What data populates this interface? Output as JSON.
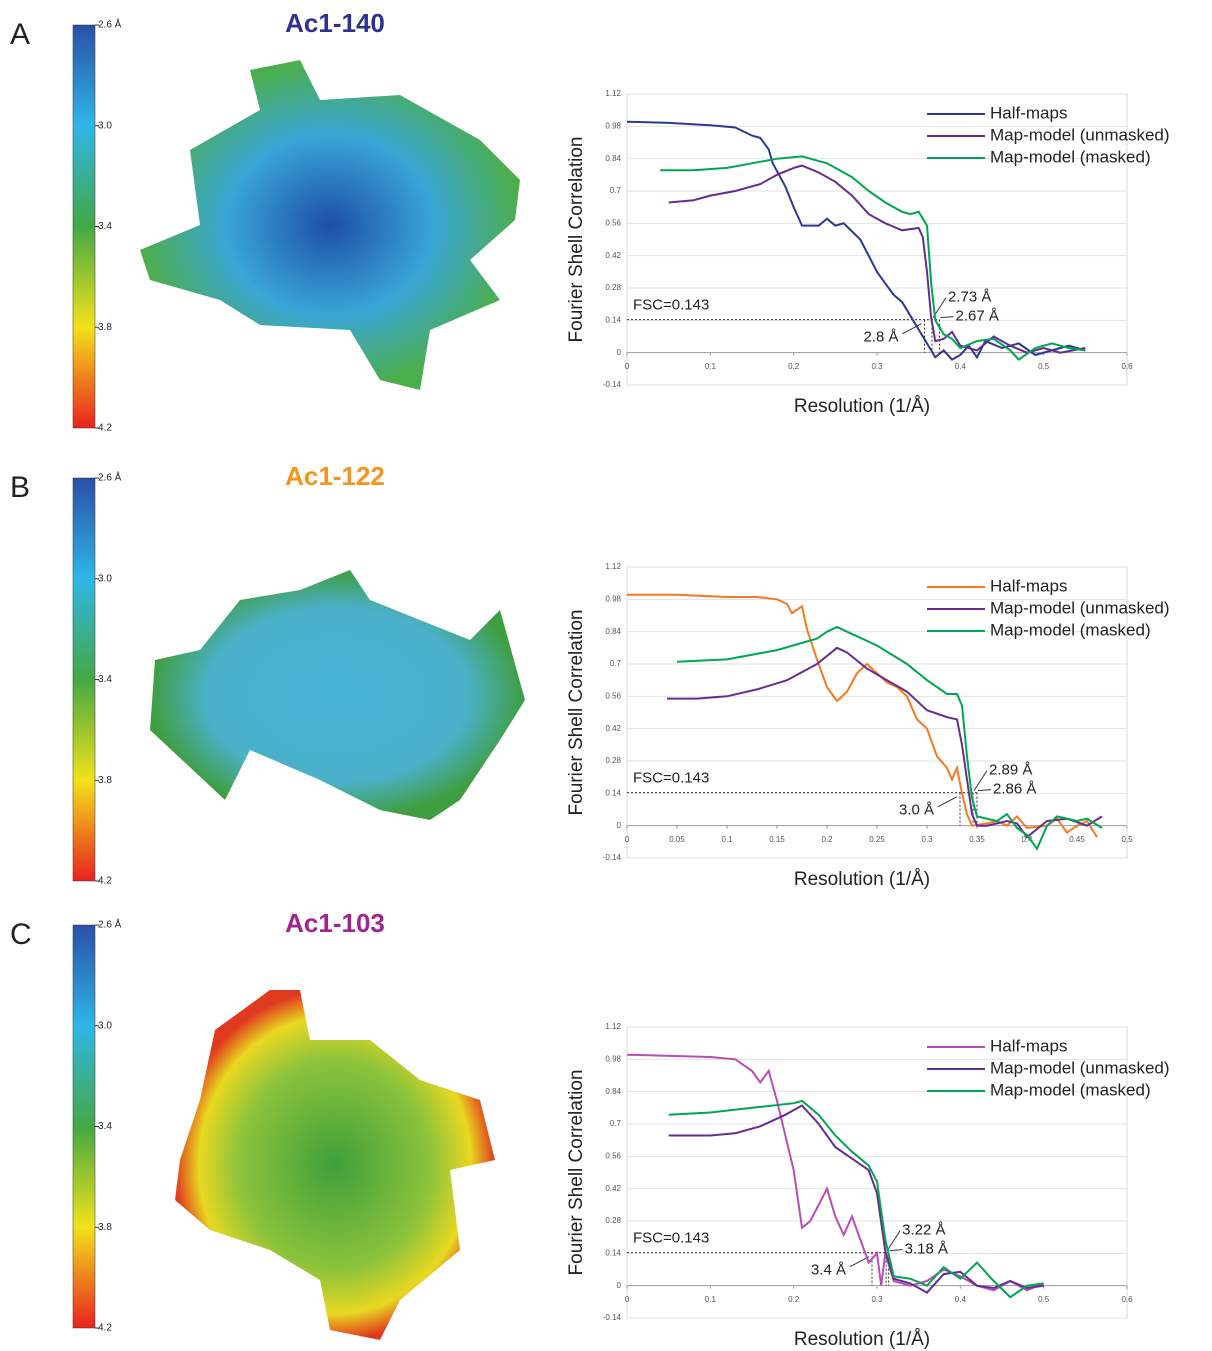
{
  "chart_data": [
    {
      "type": "line",
      "panel_label": "A",
      "title": "Ac1-140",
      "title_color": "#2e3192",
      "colorbar": {
        "ticks": [
          {
            "value": 2.6,
            "label": "2.6 Å"
          },
          {
            "value": 3,
            "label": "3.0"
          },
          3.4,
          3.8,
          4.2
        ]
      },
      "x_label": "Resolution (1/Å)",
      "y_label": "Fourier Shell Correlation",
      "xlim": [
        0,
        0.6
      ],
      "ylim": [
        -0.14,
        1.12
      ],
      "xticks": [
        0,
        0.1,
        0.2,
        0.3,
        0.4,
        0.5,
        0.6
      ],
      "yticks": [
        -0.14,
        0,
        0.14,
        0.28,
        0.42,
        0.56,
        0.7,
        0.84,
        0.98,
        1.12
      ],
      "grid": true,
      "threshold": 0.143,
      "threshold_label": "FSC=0.143",
      "annotations": [
        {
          "text": "2.8 Å",
          "x": 0.357
        },
        {
          "text": "2.73 Å",
          "x": 0.366
        },
        {
          "text": "2.67 Å",
          "x": 0.375
        }
      ],
      "series": [
        {
          "name": "Half-maps",
          "color": "#2b3990",
          "x": [
            0,
            0.05,
            0.1,
            0.13,
            0.15,
            0.16,
            0.17,
            0.175,
            0.19,
            0.2,
            0.21,
            0.23,
            0.24,
            0.25,
            0.26,
            0.28,
            0.29,
            0.3,
            0.31,
            0.32,
            0.33,
            0.34,
            0.35,
            0.36,
            0.37,
            0.38,
            0.39,
            0.4,
            0.41,
            0.42,
            0.43,
            0.45,
            0.47,
            0.49,
            0.51,
            0.53,
            0.55
          ],
          "values": [
            1.0,
            0.995,
            0.985,
            0.975,
            0.94,
            0.93,
            0.88,
            0.82,
            0.72,
            0.63,
            0.55,
            0.55,
            0.58,
            0.55,
            0.56,
            0.49,
            0.42,
            0.35,
            0.3,
            0.25,
            0.22,
            0.16,
            0.1,
            0.04,
            -0.02,
            0.01,
            -0.03,
            -0.01,
            0.03,
            -0.02,
            0.05,
            0.02,
            0.04,
            -0.01,
            0.01,
            0.03,
            0.01
          ]
        },
        {
          "name": "Map-model (unmasked)",
          "color": "#662d91",
          "x": [
            0.05,
            0.08,
            0.1,
            0.13,
            0.16,
            0.18,
            0.2,
            0.21,
            0.23,
            0.25,
            0.27,
            0.29,
            0.31,
            0.33,
            0.35,
            0.355,
            0.36,
            0.365,
            0.37,
            0.38,
            0.39,
            0.4,
            0.42,
            0.44,
            0.46,
            0.48,
            0.5,
            0.52,
            0.55
          ],
          "values": [
            0.65,
            0.66,
            0.68,
            0.7,
            0.73,
            0.77,
            0.8,
            0.81,
            0.78,
            0.74,
            0.68,
            0.6,
            0.56,
            0.53,
            0.54,
            0.5,
            0.35,
            0.15,
            0.05,
            0.06,
            0.09,
            0.03,
            0.01,
            0.07,
            0.03,
            0.0,
            0.02,
            0.0,
            0.02
          ]
        },
        {
          "name": "Map-model (masked)",
          "color": "#00a651",
          "x": [
            0.04,
            0.08,
            0.12,
            0.15,
            0.18,
            0.21,
            0.24,
            0.27,
            0.29,
            0.31,
            0.33,
            0.34,
            0.35,
            0.36,
            0.365,
            0.37,
            0.38,
            0.39,
            0.4,
            0.42,
            0.44,
            0.46,
            0.47,
            0.49,
            0.51,
            0.53,
            0.55
          ],
          "values": [
            0.79,
            0.79,
            0.8,
            0.82,
            0.84,
            0.85,
            0.82,
            0.76,
            0.7,
            0.65,
            0.61,
            0.6,
            0.61,
            0.55,
            0.3,
            0.14,
            0.08,
            0.06,
            0.02,
            0.05,
            0.06,
            0.01,
            -0.03,
            0.02,
            0.04,
            0.02,
            0.01
          ]
        }
      ]
    },
    {
      "type": "line",
      "panel_label": "B",
      "title": "Ac1-122",
      "title_color": "#f7941d",
      "colorbar": {
        "ticks": [
          {
            "value": 2.6,
            "label": "2.6 Å"
          },
          {
            "value": 3,
            "label": "3.0"
          },
          3.4,
          3.8,
          4.2
        ]
      },
      "x_label": "Resolution (1/Å)",
      "y_label": "Fourier Shell Correlation",
      "xlim": [
        0,
        0.5
      ],
      "ylim": [
        -0.14,
        1.12
      ],
      "xticks": [
        0,
        0.05,
        0.1,
        0.15,
        0.2,
        0.25,
        0.3,
        0.35,
        0.4,
        0.45,
        0.5
      ],
      "yticks": [
        -0.14,
        0,
        0.14,
        0.28,
        0.42,
        0.56,
        0.7,
        0.84,
        0.98,
        1.12
      ],
      "grid": true,
      "threshold": 0.143,
      "threshold_label": "FSC=0.143",
      "annotations": [
        {
          "text": "3.0 Å",
          "x": 0.333
        },
        {
          "text": "2.89 Å",
          "x": 0.346
        },
        {
          "text": "2.86 Å",
          "x": 0.35
        }
      ],
      "series": [
        {
          "name": "Half-maps",
          "color": "#f47920",
          "x": [
            0,
            0.05,
            0.1,
            0.13,
            0.15,
            0.16,
            0.165,
            0.175,
            0.18,
            0.19,
            0.2,
            0.21,
            0.22,
            0.23,
            0.24,
            0.25,
            0.26,
            0.27,
            0.28,
            0.29,
            0.3,
            0.31,
            0.32,
            0.325,
            0.33,
            0.335,
            0.34,
            0.345,
            0.36,
            0.37,
            0.38,
            0.39,
            0.4,
            0.42,
            0.43,
            0.44,
            0.45,
            0.46,
            0.47
          ],
          "values": [
            1.0,
            1.0,
            0.99,
            0.99,
            0.98,
            0.96,
            0.92,
            0.95,
            0.85,
            0.72,
            0.6,
            0.54,
            0.58,
            0.66,
            0.7,
            0.66,
            0.62,
            0.6,
            0.56,
            0.46,
            0.42,
            0.3,
            0.25,
            0.2,
            0.25,
            0.14,
            0.05,
            0.0,
            0.01,
            0.02,
            0.0,
            0.04,
            -0.01,
            0.0,
            0.03,
            -0.03,
            0.0,
            0.02,
            -0.05
          ]
        },
        {
          "name": "Map-model (unmasked)",
          "color": "#662d91",
          "x": [
            0.04,
            0.07,
            0.1,
            0.13,
            0.16,
            0.19,
            0.21,
            0.22,
            0.24,
            0.26,
            0.28,
            0.3,
            0.32,
            0.33,
            0.335,
            0.34,
            0.345,
            0.35,
            0.36,
            0.38,
            0.39,
            0.4,
            0.42,
            0.44,
            0.46,
            0.475
          ],
          "values": [
            0.55,
            0.55,
            0.56,
            0.59,
            0.63,
            0.7,
            0.77,
            0.75,
            0.68,
            0.63,
            0.58,
            0.5,
            0.47,
            0.46,
            0.35,
            0.2,
            0.05,
            0.0,
            0.0,
            0.02,
            0.01,
            -0.05,
            0.02,
            0.03,
            0.0,
            0.04
          ]
        },
        {
          "name": "Map-model (masked)",
          "color": "#00a651",
          "x": [
            0.05,
            0.1,
            0.15,
            0.19,
            0.2,
            0.21,
            0.22,
            0.25,
            0.28,
            0.3,
            0.32,
            0.33,
            0.335,
            0.34,
            0.345,
            0.35,
            0.37,
            0.38,
            0.39,
            0.4,
            0.41,
            0.42,
            0.43,
            0.45,
            0.46,
            0.475
          ],
          "values": [
            0.71,
            0.72,
            0.76,
            0.81,
            0.84,
            0.86,
            0.84,
            0.78,
            0.7,
            0.63,
            0.57,
            0.57,
            0.52,
            0.3,
            0.12,
            0.04,
            0.02,
            0.05,
            -0.01,
            -0.04,
            -0.1,
            0.0,
            0.04,
            0.02,
            0.03,
            -0.01
          ]
        }
      ]
    },
    {
      "type": "line",
      "panel_label": "C",
      "title": "Ac1-103",
      "title_color": "#a3238e",
      "colorbar": {
        "ticks": [
          {
            "value": 2.6,
            "label": "2.6 Å"
          },
          {
            "value": 3,
            "label": "3.0"
          },
          3.4,
          3.8,
          4.2
        ]
      },
      "x_label": "Resolution (1/Å)",
      "y_label": "Fourier Shell Correlation",
      "xlim": [
        0,
        0.6
      ],
      "ylim": [
        -0.14,
        1.12
      ],
      "xticks": [
        0,
        0.1,
        0.2,
        0.3,
        0.4,
        0.5,
        0.6
      ],
      "yticks": [
        -0.14,
        0,
        0.14,
        0.28,
        0.42,
        0.56,
        0.7,
        0.84,
        0.98,
        1.12
      ],
      "grid": true,
      "threshold": 0.143,
      "threshold_label": "FSC=0.143",
      "annotations": [
        {
          "text": "3.4 Å",
          "x": 0.294
        },
        {
          "text": "3.22 Å",
          "x": 0.311
        },
        {
          "text": "3.18 Å",
          "x": 0.314
        }
      ],
      "series": [
        {
          "name": "Half-maps",
          "color": "#b94db5",
          "x": [
            0,
            0.1,
            0.13,
            0.15,
            0.16,
            0.17,
            0.18,
            0.2,
            0.21,
            0.22,
            0.23,
            0.24,
            0.25,
            0.26,
            0.27,
            0.28,
            0.29,
            0.3,
            0.305,
            0.31,
            0.32,
            0.34,
            0.36,
            0.38,
            0.4,
            0.42,
            0.44,
            0.46,
            0.48,
            0.5
          ],
          "values": [
            1.0,
            0.99,
            0.98,
            0.93,
            0.88,
            0.93,
            0.8,
            0.5,
            0.25,
            0.28,
            0.35,
            0.42,
            0.3,
            0.22,
            0.3,
            0.2,
            0.1,
            0.14,
            0.0,
            0.14,
            0.02,
            0.0,
            0.02,
            0.07,
            0.04,
            0.0,
            -0.02,
            0.02,
            -0.02,
            0.01
          ]
        },
        {
          "name": "Map-model (unmasked)",
          "color": "#662d91",
          "x": [
            0.05,
            0.1,
            0.13,
            0.16,
            0.19,
            0.21,
            0.23,
            0.25,
            0.27,
            0.29,
            0.3,
            0.31,
            0.32,
            0.34,
            0.36,
            0.38,
            0.4,
            0.42,
            0.44,
            0.46,
            0.48,
            0.5
          ],
          "values": [
            0.65,
            0.65,
            0.66,
            0.69,
            0.74,
            0.78,
            0.7,
            0.6,
            0.55,
            0.5,
            0.4,
            0.15,
            0.03,
            0.01,
            -0.03,
            0.05,
            0.06,
            0.0,
            -0.01,
            0.02,
            -0.01,
            0.0
          ]
        },
        {
          "name": "Map-model (masked)",
          "color": "#00a651",
          "x": [
            0.05,
            0.1,
            0.15,
            0.2,
            0.21,
            0.23,
            0.25,
            0.27,
            0.29,
            0.3,
            0.31,
            0.32,
            0.34,
            0.36,
            0.38,
            0.4,
            0.42,
            0.44,
            0.46,
            0.48,
            0.5
          ],
          "values": [
            0.74,
            0.75,
            0.77,
            0.79,
            0.8,
            0.74,
            0.65,
            0.58,
            0.52,
            0.45,
            0.2,
            0.04,
            0.03,
            0.0,
            0.08,
            0.03,
            0.1,
            0.02,
            -0.05,
            0.0,
            0.01
          ]
        }
      ]
    }
  ]
}
